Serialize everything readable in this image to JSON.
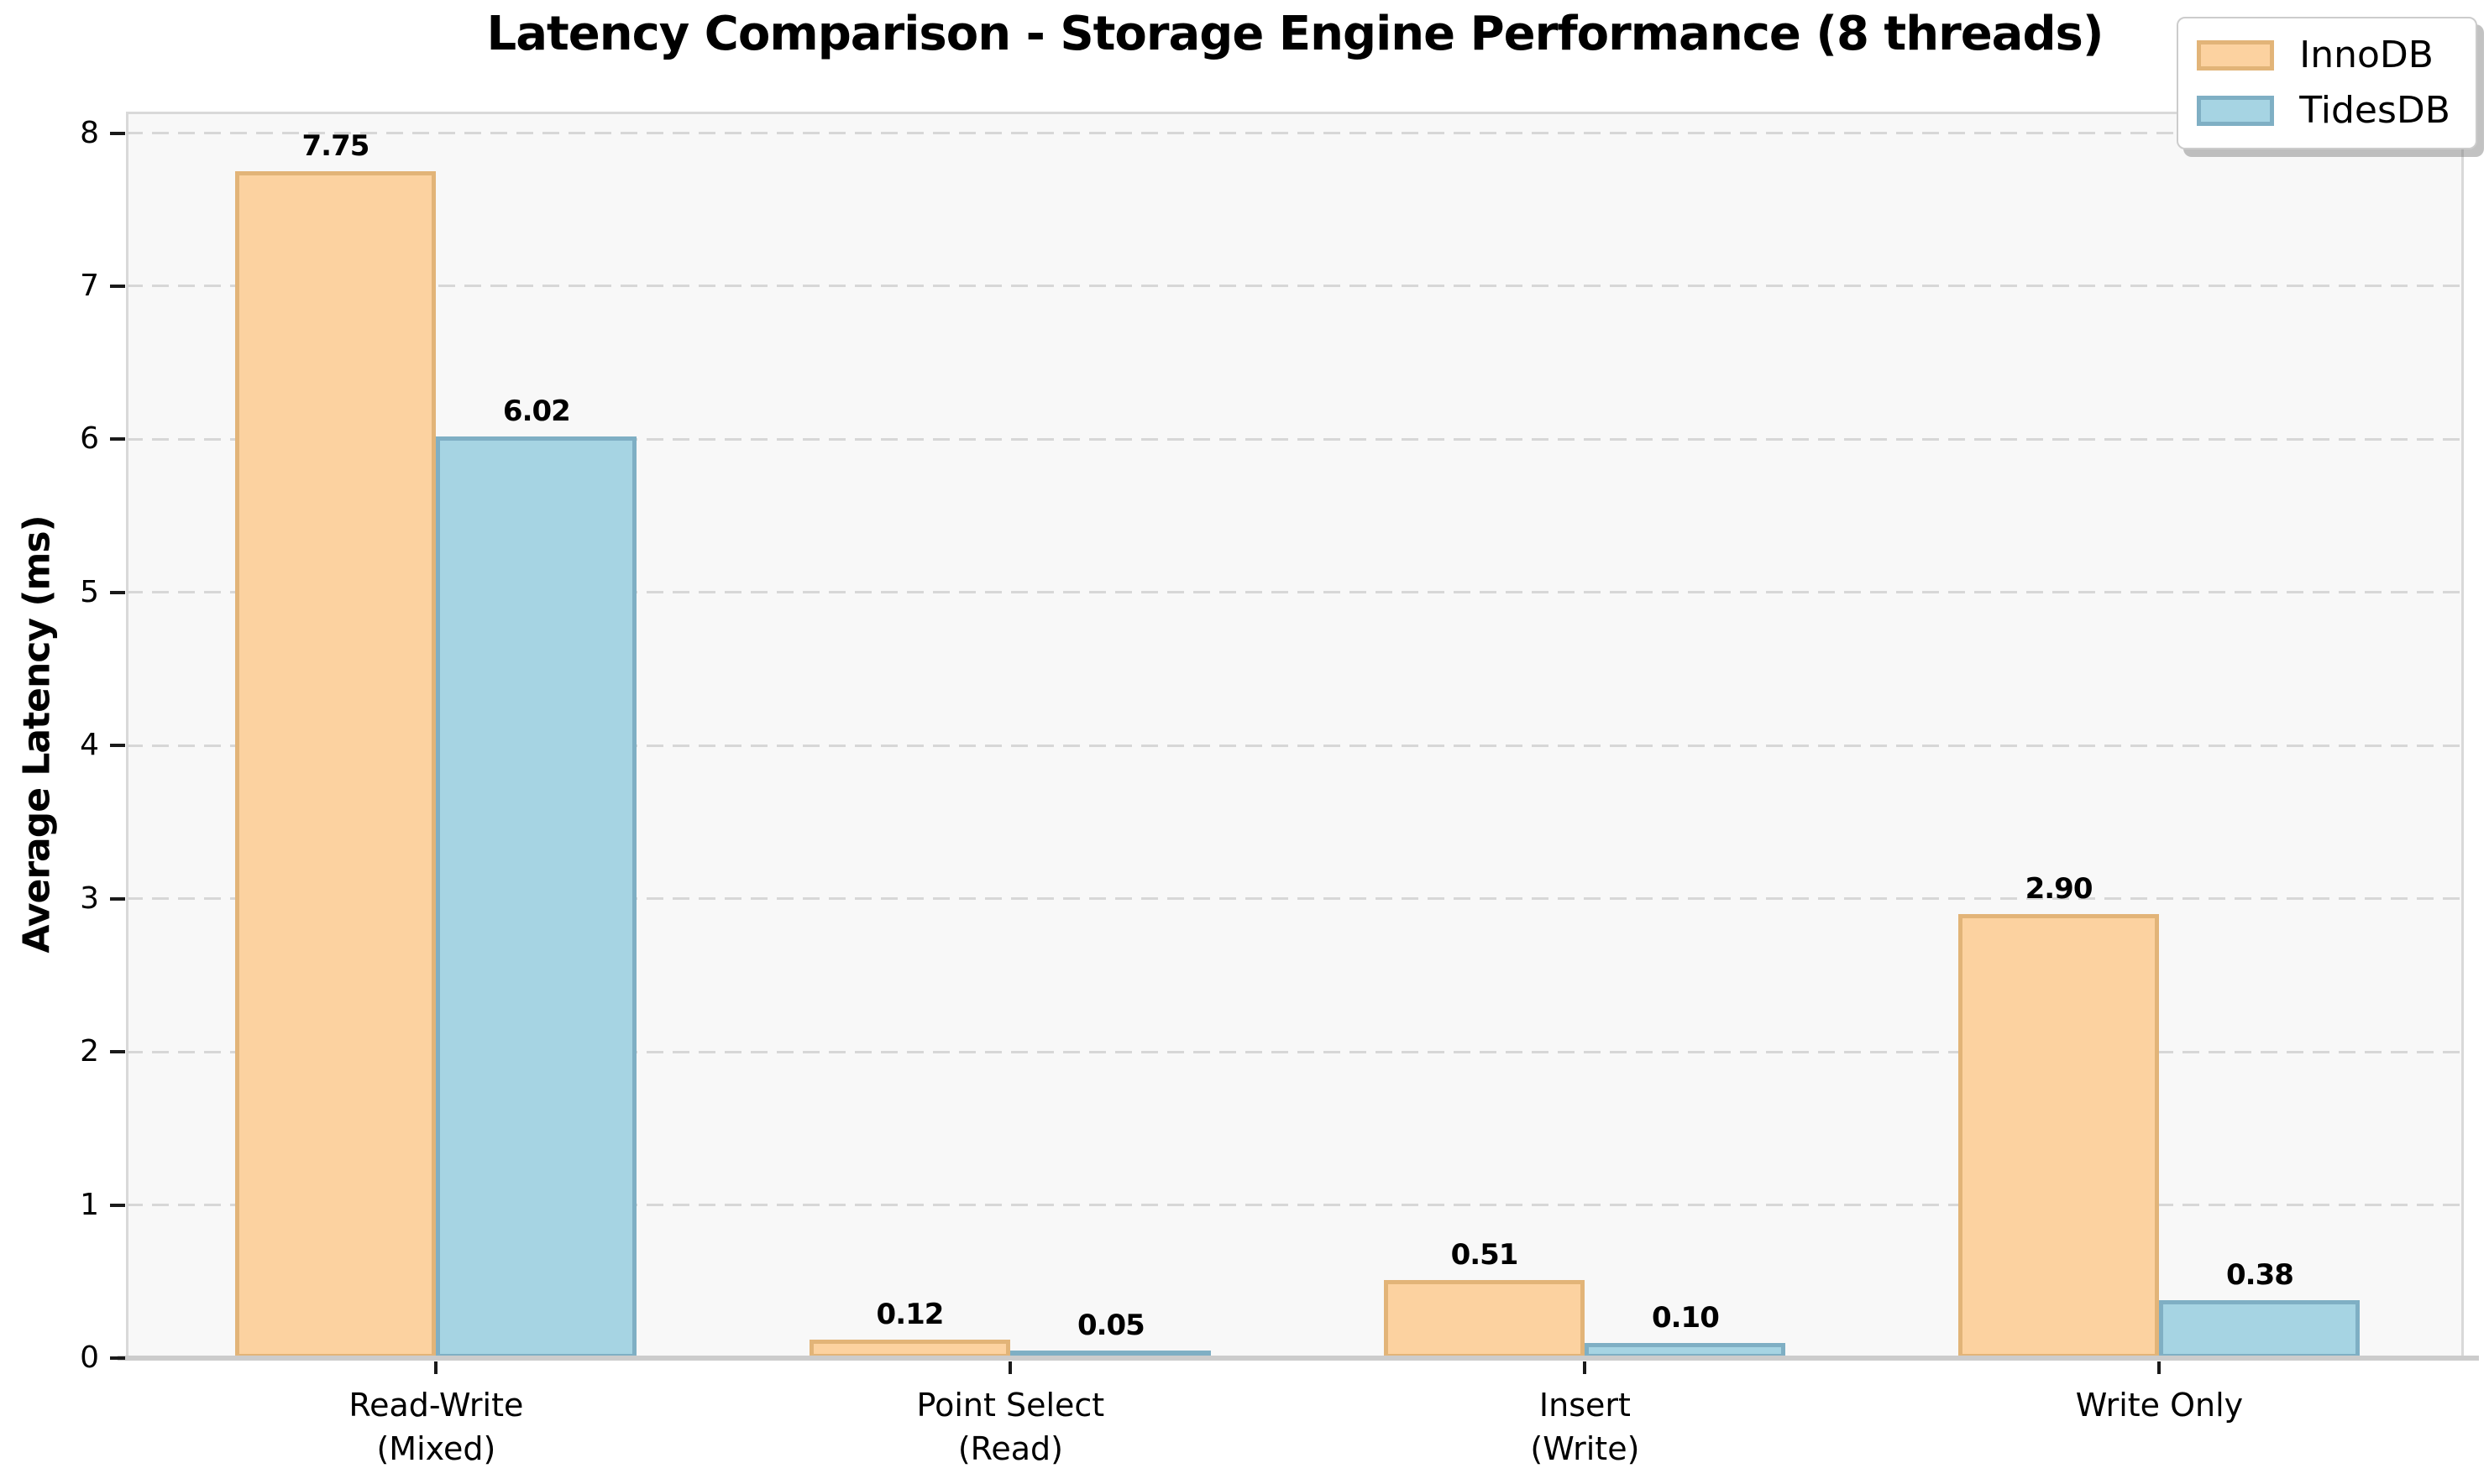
{
  "chart_data": {
    "type": "bar",
    "title": "Latency Comparison - Storage Engine Performance (8 threads)",
    "xlabel": "",
    "ylabel": "Average Latency (ms)",
    "categories": [
      "Read-Write\n(Mixed)",
      "Point Select\n(Read)",
      "Insert\n(Write)",
      "Write Only"
    ],
    "series": [
      {
        "name": "InnoDB",
        "values": [
          7.75,
          0.12,
          0.51,
          2.9
        ],
        "labels": [
          "7.75",
          "0.12",
          "0.51",
          "2.90"
        ],
        "fill_color": "#FCD2A0",
        "edge_color": "#E2B478"
      },
      {
        "name": "TidesDB",
        "values": [
          6.02,
          0.05,
          0.1,
          0.38
        ],
        "labels": [
          "6.02",
          "0.05",
          "0.10",
          "0.38"
        ],
        "fill_color": "#A6D4E3",
        "edge_color": "#7FAFC4"
      }
    ],
    "yticks": [
      0,
      1,
      2,
      3,
      4,
      5,
      6,
      7,
      8
    ],
    "ylim": [
      0,
      8.14
    ],
    "bar_width_ratio": 0.35,
    "grid": "horizontal-dashed",
    "legend_position": "top-right"
  },
  "colors": {
    "figure_background": "#ffffff",
    "plot_background": "#f8f8f8",
    "gridline": "#d7d7d7",
    "spine": "#d9d9d9",
    "axis_line": "#cccccc",
    "tick_mark": "#1a1a1a",
    "text": "#000000",
    "legend_border": "#cccccc"
  }
}
